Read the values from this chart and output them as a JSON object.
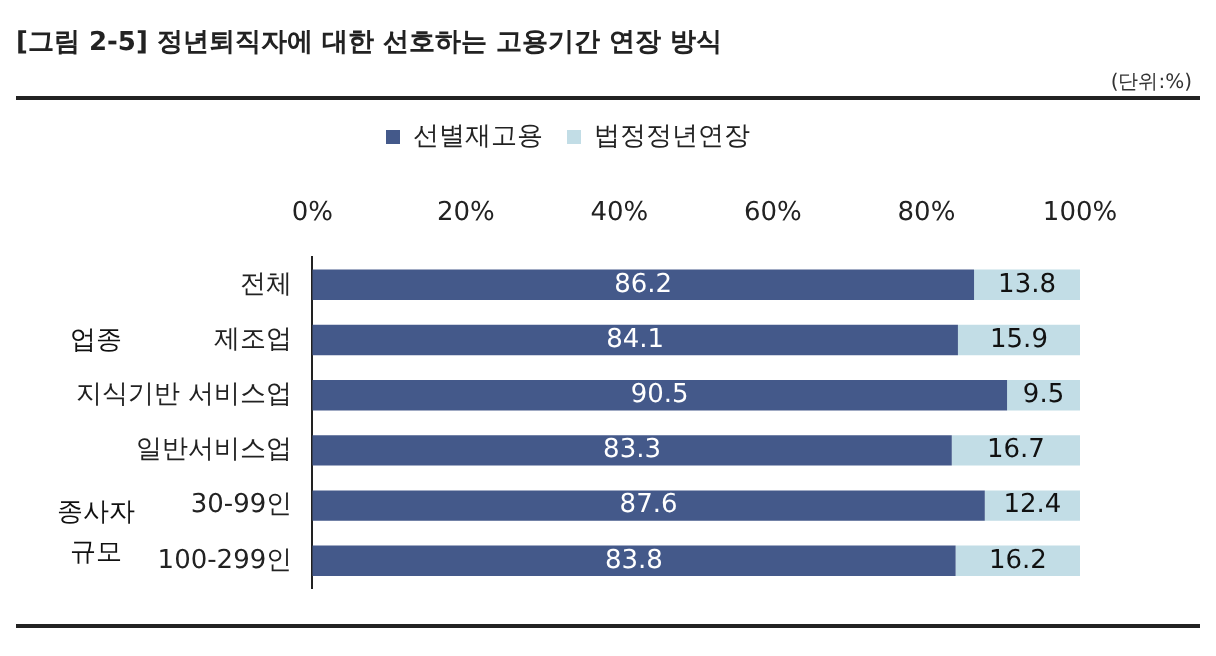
{
  "chart_data": {
    "type": "bar",
    "orientation": "horizontal",
    "stacked": true,
    "title": "[그림 2-5] 정년퇴직자에 대한 선호하는 고용기간 연장 방식",
    "annotations": [
      "(단위:%)",
      "업종",
      "종사자\n규모"
    ],
    "categories": [
      "전체",
      "제조업",
      "지식기반 서비스업",
      "일반서비스업",
      "30-99인",
      "100-299인"
    ],
    "series": [
      {
        "name": "선별재고용",
        "color": "#44598a",
        "values": [
          86.2,
          84.1,
          90.5,
          83.3,
          87.6,
          83.8
        ]
      },
      {
        "name": "법정정년연장",
        "color": "#c2dde6",
        "values": [
          13.8,
          15.9,
          9.5,
          16.7,
          12.4,
          16.2
        ]
      }
    ],
    "xlim": [
      0,
      100
    ],
    "xticks": [
      {
        "value": 0,
        "label": "0%"
      },
      {
        "value": 20,
        "label": "20%"
      },
      {
        "value": 40,
        "label": "40%"
      },
      {
        "value": 60,
        "label": "60%"
      },
      {
        "value": 80,
        "label": "80%"
      },
      {
        "value": 100,
        "label": "100%"
      }
    ],
    "data_labels": true,
    "legend": "top",
    "grid": false
  }
}
